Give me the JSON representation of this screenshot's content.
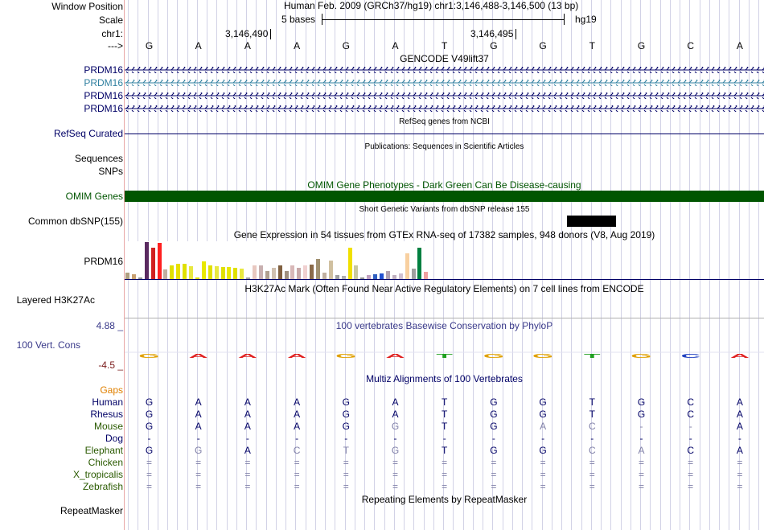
{
  "header": {
    "position_title": "Human Feb. 2009 (GRCh37/hg19)   chr1:3,146,488-3,146,500 (13 bp)",
    "scale_text": "5 bases",
    "scale_db": "hg19",
    "tick1": "3,146,490",
    "tick2": "3,146,495"
  },
  "labels": {
    "window_position": "Window Position",
    "scale": "Scale",
    "chr": "chr1:",
    "arrow": "--->",
    "prdm16_1": "PRDM16",
    "prdm16_2": "PRDM16",
    "prdm16_3": "PRDM16",
    "prdm16_4": "PRDM16",
    "refseq": "RefSeq Curated",
    "sequences": "Sequences",
    "snps": "SNPs",
    "omim": "OMIM Genes",
    "dbsnp": "Common dbSNP(155)",
    "gtex_gene": "PRDM16",
    "h3k27ac": "Layered H3K27Ac",
    "cons_max": "4.88 _",
    "cons": "100 Vert. Cons",
    "cons_min": "-4.5 _",
    "gaps": "Gaps"
  },
  "bases": [
    "G",
    "A",
    "A",
    "A",
    "G",
    "A",
    "T",
    "G",
    "G",
    "T",
    "G",
    "C",
    "A"
  ],
  "tracks": {
    "gencode": "GENCODE V49lift37",
    "refseq": "RefSeq genes from NCBI",
    "publications": "Publications: Sequences in Scientific Articles",
    "omim": "OMIM Gene Phenotypes - Dark Green Can Be Disease-causing",
    "dbsnp": "Short Genetic Variants from dbSNP release 155",
    "gtex": "Gene Expression in 54 tissues from GTEx RNA-seq of 17382 samples, 948 donors (V8, Aug 2019)",
    "h3k27ac": "H3K27Ac Mark (Often Found Near Active Regulatory Elements) on 7 cell lines from ENCODE",
    "phylop": "100 vertebrates Basewise Conservation by PhyloP",
    "multiz": "Multiz Alignments of 100 Vertebrates",
    "repeatmasker": "Repeating Elements by RepeatMasker",
    "repeatmasker_label": "RepeatMasker"
  },
  "alignment": [
    {
      "species": "Human",
      "color": "#000066",
      "bases": [
        "G",
        "A",
        "A",
        "A",
        "G",
        "A",
        "T",
        "G",
        "G",
        "T",
        "G",
        "C",
        "A"
      ],
      "dim": [
        0,
        0,
        0,
        0,
        0,
        0,
        0,
        0,
        0,
        0,
        0,
        0,
        0
      ]
    },
    {
      "species": "Rhesus",
      "color": "#000066",
      "bases": [
        "G",
        "A",
        "A",
        "A",
        "G",
        "A",
        "T",
        "G",
        "G",
        "T",
        "G",
        "C",
        "A"
      ],
      "dim": [
        0,
        0,
        0,
        0,
        0,
        0,
        0,
        0,
        0,
        0,
        0,
        0,
        0
      ]
    },
    {
      "species": "Mouse",
      "color": "#2a5a00",
      "bases": [
        "G",
        "A",
        "A",
        "A",
        "G",
        "G",
        "T",
        "G",
        "A",
        "C",
        "-",
        "-",
        "A"
      ],
      "dim": [
        0,
        0,
        0,
        0,
        0,
        1,
        0,
        0,
        1,
        1,
        1,
        1,
        0
      ]
    },
    {
      "species": "Dog",
      "color": "#000066",
      "bases": [
        "-",
        "-",
        "-",
        "-",
        "-",
        "-",
        "-",
        "-",
        "-",
        "-",
        "-",
        "-",
        "-"
      ],
      "dim": [
        0,
        0,
        0,
        0,
        0,
        0,
        0,
        0,
        0,
        0,
        0,
        0,
        0
      ]
    },
    {
      "species": "Elephant",
      "color": "#2a5a00",
      "bases": [
        "G",
        "G",
        "A",
        "C",
        "T",
        "G",
        "T",
        "G",
        "G",
        "C",
        "A",
        "C",
        "A"
      ],
      "dim": [
        0,
        1,
        0,
        1,
        1,
        1,
        0,
        0,
        0,
        1,
        1,
        0,
        0
      ]
    },
    {
      "species": "Chicken",
      "color": "#2a5a00",
      "bases": [
        "=",
        "=",
        "=",
        "=",
        "=",
        "=",
        "=",
        "=",
        "=",
        "=",
        "=",
        "=",
        "="
      ],
      "dim": [
        1,
        1,
        1,
        1,
        1,
        1,
        1,
        1,
        1,
        1,
        1,
        1,
        1
      ]
    },
    {
      "species": "X_tropicalis",
      "color": "#2a5a00",
      "bases": [
        "=",
        "=",
        "=",
        "=",
        "=",
        "=",
        "=",
        "=",
        "=",
        "=",
        "=",
        "=",
        "="
      ],
      "dim": [
        1,
        1,
        1,
        1,
        1,
        1,
        1,
        1,
        1,
        1,
        1,
        1,
        1
      ]
    },
    {
      "species": "Zebrafish",
      "color": "#2a5a00",
      "bases": [
        "=",
        "=",
        "=",
        "=",
        "=",
        "=",
        "=",
        "=",
        "=",
        "=",
        "=",
        "=",
        "="
      ],
      "dim": [
        1,
        1,
        1,
        1,
        1,
        1,
        1,
        1,
        1,
        1,
        1,
        1,
        1
      ]
    }
  ],
  "colors": {
    "gene_blue": "#000066",
    "gene_teal": "#3080a0",
    "omim_green": "#005500",
    "gaps_orange": "#e08000",
    "cons_blue": "#3a3a8a",
    "cons_red": "#7a1a1a"
  },
  "gtex_bars": [
    {
      "v": 0.18,
      "c": "#b0a080"
    },
    {
      "v": 0.12,
      "c": "#c8a070"
    },
    {
      "v": 0.05,
      "c": "#909090"
    },
    {
      "v": 1.0,
      "c": "#5a2a60"
    },
    {
      "v": 0.85,
      "c": "#d02020"
    },
    {
      "v": 0.98,
      "c": "#ff2020"
    },
    {
      "v": 0.25,
      "c": "#c0b0a0"
    },
    {
      "v": 0.38,
      "c": "#e0e000"
    },
    {
      "v": 0.42,
      "c": "#e8e000"
    },
    {
      "v": 0.42,
      "c": "#e0e000"
    },
    {
      "v": 0.35,
      "c": "#e8e840"
    },
    {
      "v": 0.05,
      "c": "#e0e000"
    },
    {
      "v": 0.48,
      "c": "#e8e800"
    },
    {
      "v": 0.38,
      "c": "#e0e000"
    },
    {
      "v": 0.35,
      "c": "#e8e840"
    },
    {
      "v": 0.33,
      "c": "#e0e000"
    },
    {
      "v": 0.32,
      "c": "#e8e800"
    },
    {
      "v": 0.3,
      "c": "#e0e000"
    },
    {
      "v": 0.28,
      "c": "#e8e840"
    },
    {
      "v": 0.05,
      "c": "#a0a0a0"
    },
    {
      "v": 0.36,
      "c": "#e8c8c0"
    },
    {
      "v": 0.36,
      "c": "#c8b0b0"
    },
    {
      "v": 0.22,
      "c": "#b0a090"
    },
    {
      "v": 0.3,
      "c": "#d0c0b0"
    },
    {
      "v": 0.36,
      "c": "#806040"
    },
    {
      "v": 0.22,
      "c": "#a09080"
    },
    {
      "v": 0.38,
      "c": "#d8b8b8"
    },
    {
      "v": 0.3,
      "c": "#c8a8a8"
    },
    {
      "v": 0.36,
      "c": "#f0d0d0"
    },
    {
      "v": 0.4,
      "c": "#8a6a4a"
    },
    {
      "v": 0.55,
      "c": "#a09070"
    },
    {
      "v": 0.18,
      "c": "#c0b0a0"
    },
    {
      "v": 0.5,
      "c": "#d0c0a0"
    },
    {
      "v": 0.1,
      "c": "#a0a0a0"
    },
    {
      "v": 0.08,
      "c": "#b0b0b0"
    },
    {
      "v": 0.85,
      "c": "#f0e000"
    },
    {
      "v": 0.38,
      "c": "#c8c8a0"
    },
    {
      "v": 0.05,
      "c": "#909090"
    },
    {
      "v": 0.1,
      "c": "#c0a0c0"
    },
    {
      "v": 0.12,
      "c": "#3060c0"
    },
    {
      "v": 0.15,
      "c": "#2050d0"
    },
    {
      "v": 0.22,
      "c": "#b0a0b0"
    },
    {
      "v": 0.1,
      "c": "#c0b0c0"
    },
    {
      "v": 0.15,
      "c": "#d0c0d0"
    },
    {
      "v": 0.7,
      "c": "#f8d0a0"
    },
    {
      "v": 0.28,
      "c": "#a0a0a0"
    },
    {
      "v": 0.85,
      "c": "#008040"
    },
    {
      "v": 0.2,
      "c": "#f0a0a0"
    }
  ]
}
